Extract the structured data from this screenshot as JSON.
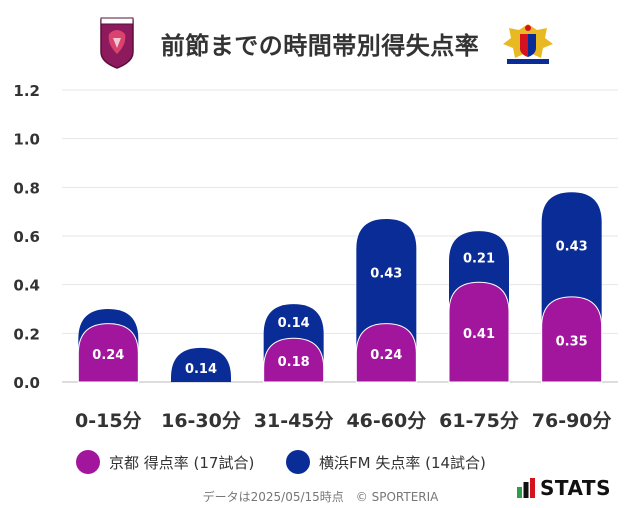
{
  "header": {
    "title": "前節までの時間帯別得失点率",
    "left_logo_text": "KYOTO SANGA",
    "right_logo_text": "Yokohama F·Marinos"
  },
  "chart_data": {
    "type": "bar",
    "stacked": true,
    "categories": [
      "0-15分",
      "16-30分",
      "31-45分",
      "46-60分",
      "61-75分",
      "76-90分"
    ],
    "series": [
      {
        "name": "京都 得点率 (17試合)",
        "color": "#A2169E",
        "values": [
          0.24,
          0,
          0.18,
          0.24,
          0.41,
          0.35
        ]
      },
      {
        "name": "横浜FM 失点率 (14試合)",
        "color": "#0A2C96",
        "values": [
          0.06,
          0.14,
          0.14,
          0.43,
          0.21,
          0.43
        ]
      }
    ],
    "data_labels": [
      [
        "0.24",
        "",
        "0.18",
        "0.24",
        "0.41",
        "0.35"
      ],
      [
        "",
        "0.14",
        "0.14",
        "0.43",
        "0.21",
        "0.43"
      ]
    ],
    "ylim": [
      0,
      1.2
    ],
    "yticks": [
      "0.0",
      "0.2",
      "0.4",
      "0.6",
      "0.8",
      "1.0",
      "1.2"
    ],
    "grid": true,
    "legend_position": "bottom"
  },
  "legend": [
    {
      "label": "京都 得点率 (17試合)",
      "color": "#A2169E"
    },
    {
      "label": "横浜FM 失点率 (14試合)",
      "color": "#0A2C96"
    }
  ],
  "footer": {
    "text": "データは2025/05/15時点　© SPORTERIA"
  },
  "brand": {
    "name": "STATS",
    "icon": "bar-chart-icon"
  }
}
